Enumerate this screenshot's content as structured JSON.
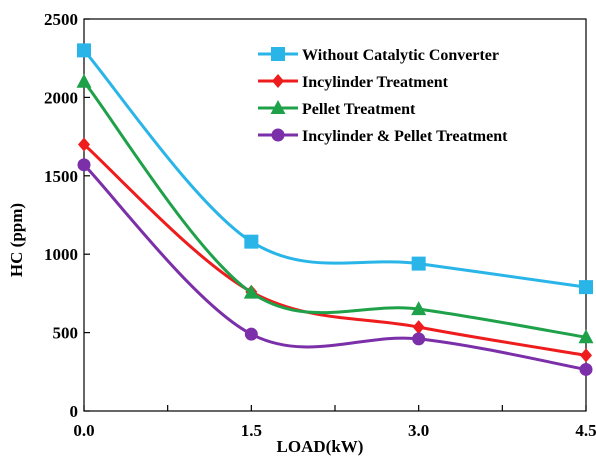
{
  "chart_data": {
    "type": "line",
    "title": "",
    "xlabel": "LOAD(kW)",
    "ylabel": "HC (ppm)",
    "xlim": [
      0,
      4.5
    ],
    "ylim": [
      0,
      2500
    ],
    "x_ticks": [
      0.0,
      1.5,
      3.0,
      4.5
    ],
    "x_tick_labels": [
      "0.0",
      "1.5",
      "3.0",
      "4.5"
    ],
    "x_minor_ticks": [
      0.75,
      2.25,
      3.75
    ],
    "y_ticks": [
      0,
      500,
      1000,
      1500,
      2000,
      2500
    ],
    "y_tick_labels": [
      "0",
      "500",
      "1000",
      "1500",
      "2000",
      "2500"
    ],
    "grid": false,
    "legend_position": "top-right",
    "smooth": true,
    "x": [
      0.0,
      1.5,
      3.0,
      4.5
    ],
    "series": [
      {
        "name": "Without Catalytic Converter",
        "values": [
          2300,
          1080,
          940,
          790
        ],
        "color": "#2ab5e8",
        "marker": "square"
      },
      {
        "name": "Incylinder Treatment",
        "values": [
          1700,
          760,
          535,
          355
        ],
        "color": "#ee1c1c",
        "marker": "diamond"
      },
      {
        "name": "Pellet Treatment",
        "values": [
          2100,
          755,
          650,
          470
        ],
        "color": "#1fa14a",
        "marker": "triangle"
      },
      {
        "name": "Incylinder & Pellet  Treatment",
        "values": [
          1570,
          490,
          460,
          265
        ],
        "color": "#7b2fa8",
        "marker": "circle"
      }
    ]
  }
}
